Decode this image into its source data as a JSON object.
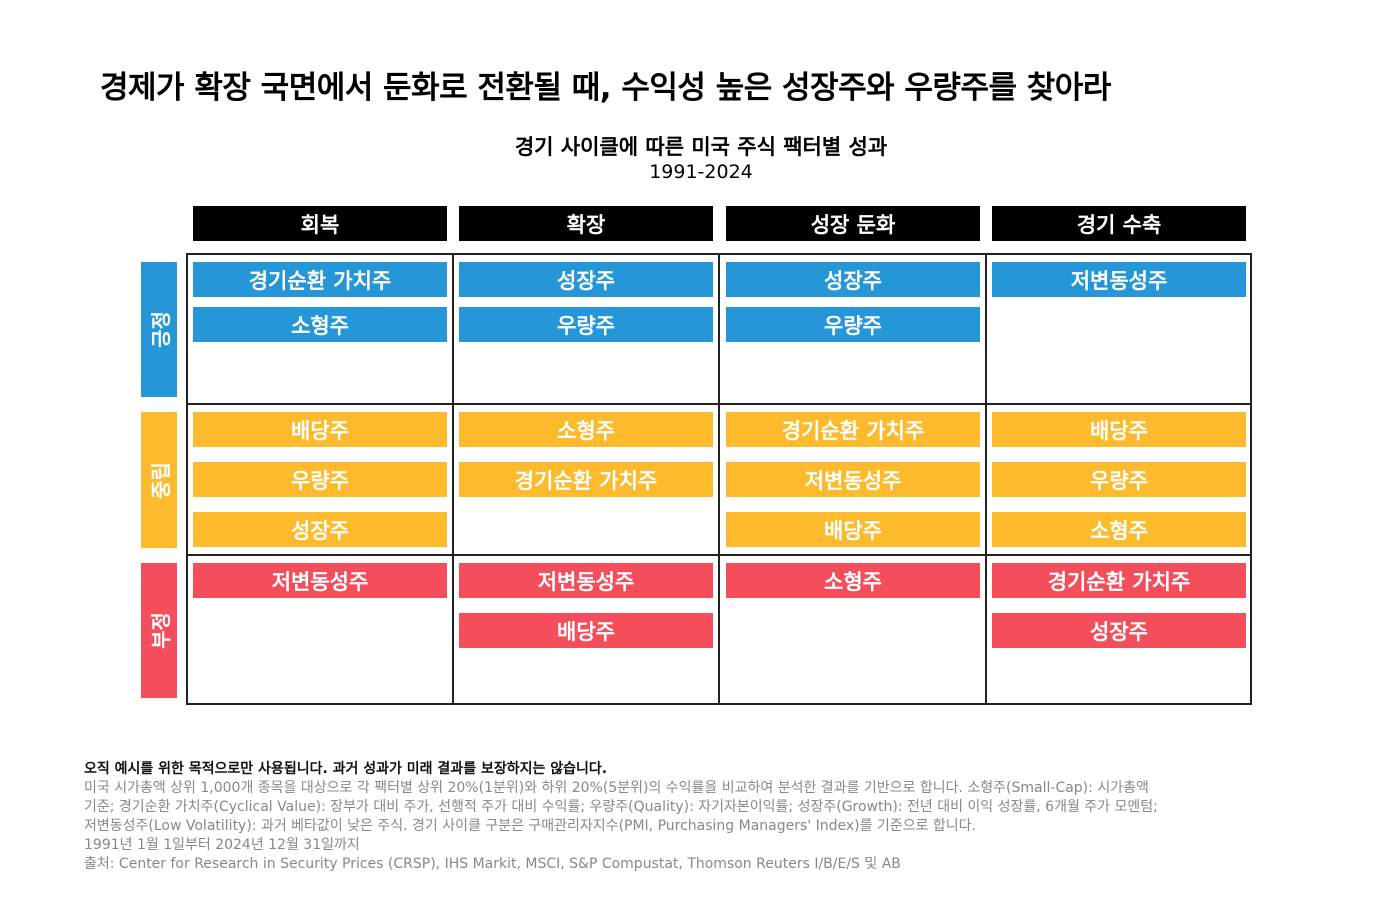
{
  "main_title": "경제가 확장 국면에서 둔화로 전환될  때, 수익성 높은 성장주와 우량주를 찾아라",
  "chart_title": "경기 사이클에 따른 미국 주식 팩터별 성과",
  "chart_subtitle": "1991-2024",
  "phases": [
    "회복",
    "확장",
    "성장 둔화",
    "경기 수축"
  ],
  "rows": [
    {
      "label": "긍정",
      "color": "#2596D8"
    },
    {
      "label": "중립",
      "color": "#FDBA2C"
    },
    {
      "label": "부정",
      "color": "#F44D5B"
    }
  ],
  "cells": {
    "positive": [
      [
        "경기순환 가치주",
        "소형주"
      ],
      [
        "성장주",
        "우량주"
      ],
      [
        "성장주",
        "우량주"
      ],
      [
        "저변동성주"
      ]
    ],
    "neutral": [
      [
        "배당주",
        "우량주",
        "성장주"
      ],
      [
        "소형주",
        "경기순환 가치주"
      ],
      [
        "경기순환 가치주",
        "저변동성주",
        "배당주"
      ],
      [
        "배당주",
        "우량주",
        "소형주"
      ]
    ],
    "negative": [
      [
        "저변동성주"
      ],
      [
        "저변동성주",
        "배당주"
      ],
      [
        "소형주"
      ],
      [
        "경기순환 가치주",
        "성장주"
      ]
    ]
  },
  "footer": {
    "disclaimer": "오직 예시를 위한 목적으로만 사용됩니다. 과거 성과가 미래 결과를 보장하지는 않습니다.",
    "line1": "미국 시가총액 상위 1,000개 종목을 대상으로 각 팩터별 상위 20%(1분위)와 하위 20%(5분위)의 수익률을 비교하여 분석한 결과를 기반으로 합니다. 소형주(Small-Cap): 시가총액",
    "line2": "기준; 경기순환 가치주(Cyclical Value): 장부가 대비 주가, 선행적 주가 대비 수익률; 우량주(Quality): 자기자본이익률; 성장주(Growth): 전년 대비 이익 성장률, 6개월 주가 모멘텀;",
    "line3": "저변동성주(Low Volatility): 과거 베타값이 낮은 주식. 경기 사이클 구분은 구매관리자지수(PMI, Purchasing Managers' Index)를 기준으로 합니다.",
    "line4": "1991년 1월 1일부터 2024년 12월 31일까지",
    "line5": "출처: Center for Research in Security Prices (CRSP), IHS Markit, MSCI, S&P Compustat, Thomson Reuters I/B/E/S 및 AB"
  }
}
